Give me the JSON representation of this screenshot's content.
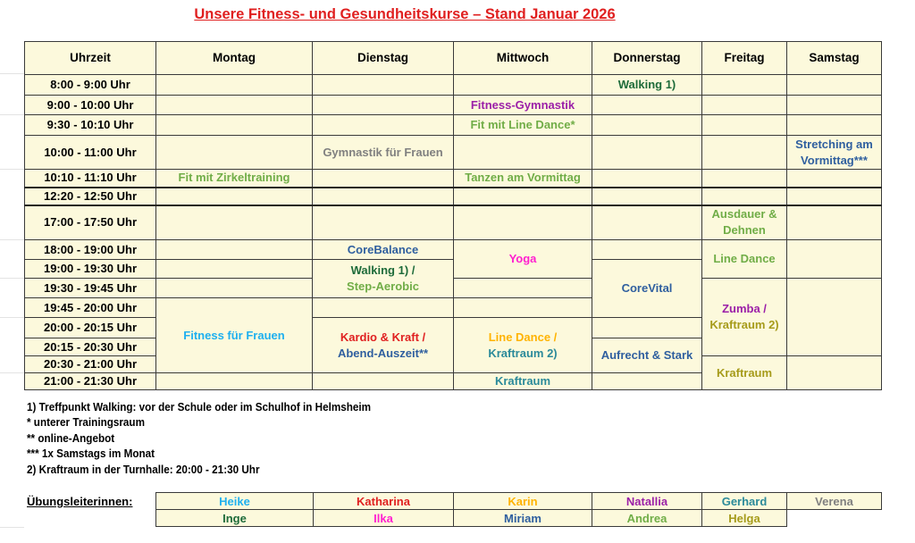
{
  "title": "Unsere Fitness- und Gesundheitskurse – Stand Januar 2026",
  "colors": {
    "title": "#e02020",
    "cell_background": "#fcf9dc"
  },
  "schedule": {
    "headers": [
      "Uhrzeit",
      "Montag",
      "Dienstag",
      "Mittwoch",
      "Donnerstag",
      "Freitag",
      "Samstag"
    ],
    "rows": [
      {
        "time": "8:00 - 9:00 Uhr",
        "cells": [
          {
            "parts": []
          },
          {
            "parts": []
          },
          {
            "parts": []
          },
          {
            "parts": [
              {
                "text": "Walking 1)",
                "color": "#1e6b3a"
              }
            ]
          },
          {
            "parts": []
          },
          {
            "parts": []
          }
        ]
      },
      {
        "time": "9:00 - 10:00 Uhr",
        "cells": [
          {
            "parts": []
          },
          {
            "parts": []
          },
          {
            "parts": [
              {
                "text": "Fitness-Gymnastik",
                "color": "#9b1fa8"
              }
            ]
          },
          {
            "parts": []
          },
          {
            "parts": []
          },
          {
            "parts": []
          }
        ]
      },
      {
        "time": "9:30 - 10:10 Uhr",
        "cells": [
          {
            "parts": []
          },
          {
            "parts": []
          },
          {
            "parts": [
              {
                "text": "Fit mit Line Dance*",
                "color": "#70ad47"
              }
            ]
          },
          {
            "parts": []
          },
          {
            "parts": []
          },
          {
            "parts": []
          }
        ]
      },
      {
        "time": "10:00 - 11:00 Uhr",
        "cells": [
          {
            "parts": []
          },
          {
            "parts": [
              {
                "text": "Gymnastik für Frauen",
                "color": "#808080"
              }
            ]
          },
          {
            "parts": []
          },
          {
            "parts": []
          },
          {
            "parts": []
          },
          {
            "parts": [
              {
                "text": "Stretching am",
                "color": "#2f5f9f"
              },
              {
                "text": "Vormittag***",
                "color": "#2f5f9f"
              }
            ]
          }
        ]
      },
      {
        "time": "10:10 - 11:10 Uhr",
        "cells": [
          {
            "parts": [
              {
                "text": "Fit mit Zirkeltraining",
                "color": "#70ad47"
              }
            ]
          },
          {
            "parts": []
          },
          {
            "parts": [
              {
                "text": "Tanzen am Vormittag",
                "color": "#70ad47"
              }
            ]
          },
          {
            "parts": []
          },
          {
            "parts": []
          },
          {
            "parts": []
          }
        ]
      },
      {
        "time": "12:20 - 12:50 Uhr",
        "cells": [
          {
            "parts": []
          },
          {
            "parts": []
          },
          {
            "parts": []
          },
          {
            "parts": []
          },
          {
            "parts": []
          },
          {
            "parts": []
          }
        ]
      },
      {
        "time": "17:00 - 17:50 Uhr",
        "cells": [
          {
            "parts": []
          },
          {
            "parts": []
          },
          {
            "parts": []
          },
          {
            "parts": []
          },
          {
            "parts": [
              {
                "text": "Ausdauer &",
                "color": "#70ad47"
              },
              {
                "text": "Dehnen",
                "color": "#70ad47"
              }
            ]
          },
          {
            "parts": []
          }
        ]
      },
      {
        "time": "18:00 - 19:00 Uhr",
        "cells": [
          {
            "parts": []
          },
          {
            "parts": [
              {
                "text": "CoreBalance",
                "color": "#2f5f9f"
              }
            ]
          },
          {
            "parts": [
              {
                "text": "Yoga",
                "color": "#ff1fd0"
              }
            ],
            "rowspan": 2
          },
          {
            "parts": []
          },
          {
            "parts": [
              {
                "text": "Line Dance",
                "color": "#70ad47"
              }
            ],
            "rowspan": 2
          },
          {
            "parts": [],
            "rowspan": 2
          }
        ]
      },
      {
        "time": "19:00 - 19:30 Uhr",
        "cells": [
          {
            "parts": []
          },
          {
            "parts": [
              {
                "text": "Walking 1) /",
                "color": "#1e6b3a"
              },
              {
                "text": "Step-Aerobic",
                "color": "#70ad47"
              }
            ],
            "rowspan": 2
          },
          {
            "parts": [
              {
                "text": "CoreVital",
                "color": "#2f5f9f"
              }
            ],
            "rowspan": 3
          }
        ]
      },
      {
        "time": "19:30 - 19:45 Uhr",
        "cells": [
          {
            "parts": []
          },
          {
            "parts": []
          },
          {
            "parts": [
              {
                "text": "Zumba /",
                "color": "#9b1fa8"
              },
              {
                "text": "Kraftraum 2)",
                "color": "#a69b1a"
              }
            ],
            "rowspan": 4
          },
          {
            "parts": [],
            "rowspan": 4
          }
        ]
      },
      {
        "time": "19:45 - 20:00 Uhr",
        "cells": [
          {
            "parts": [
              {
                "text": "Fitness für Frauen",
                "color": "#1fb0ef"
              }
            ],
            "rowspan": 4
          },
          {
            "parts": []
          },
          {
            "parts": []
          }
        ]
      },
      {
        "time": "20:00 - 20:15 Uhr",
        "cells": [
          {
            "parts": [
              {
                "text": "Kardio & Kraft /",
                "color": "#e02020"
              },
              {
                "text": "Abend-Auszeit**",
                "color": "#2f5f9f"
              }
            ],
            "rowspan": 3
          },
          {
            "parts": [
              {
                "text": "Line Dance /",
                "color": "#ffb300"
              },
              {
                "text": "Kraftraum 2)",
                "color": "#2b8a9a"
              }
            ],
            "rowspan": 3
          },
          {
            "parts": []
          }
        ]
      },
      {
        "time": "20:15 - 20:30 Uhr",
        "cells": [
          {
            "parts": [
              {
                "text": "Aufrecht & Stark",
                "color": "#2f5f9f"
              }
            ],
            "rowspan": 2
          }
        ]
      },
      {
        "time": "20:30 - 21:00 Uhr",
        "cells": [
          {
            "parts": [
              {
                "text": "Kraftraum",
                "color": "#a69b1a"
              }
            ],
            "rowspan": 2
          },
          {
            "parts": [],
            "rowspan": 2
          }
        ]
      },
      {
        "time": "21:00 - 21:30 Uhr",
        "cells": [
          {
            "parts": []
          },
          {
            "parts": []
          },
          {
            "parts": [
              {
                "text": "Kraftraum",
                "color": "#2b8a9a"
              }
            ]
          },
          {
            "parts": []
          }
        ]
      }
    ]
  },
  "footnotes": [
    "1) Treffpunkt Walking: vor der Schule oder im Schulhof in Helmsheim",
    "* unterer Trainingsraum",
    "** online-Angebot",
    "*** 1x Samstags im Monat",
    "2) Kraftraum in der Turnhalle: 20:00 - 21:30 Uhr"
  ],
  "instructors": {
    "label": "Übungsleiterinnen:",
    "rows": [
      [
        {
          "name": "Heike",
          "color": "#1fb0ef"
        },
        {
          "name": "Katharina",
          "color": "#e02020"
        },
        {
          "name": "Karin",
          "color": "#ffb300"
        },
        {
          "name": "Natallia",
          "color": "#9b1fa8"
        },
        {
          "name": "Gerhard",
          "color": "#2b8a9a"
        },
        {
          "name": "Verena",
          "color": "#808080"
        }
      ],
      [
        {
          "name": "Inge",
          "color": "#1e6b3a"
        },
        {
          "name": "Ilka",
          "color": "#ff1fd0"
        },
        {
          "name": "Miriam",
          "color": "#2f5f9f"
        },
        {
          "name": "Andrea",
          "color": "#70ad47"
        },
        {
          "name": "Helga",
          "color": "#a69b1a"
        }
      ]
    ]
  }
}
